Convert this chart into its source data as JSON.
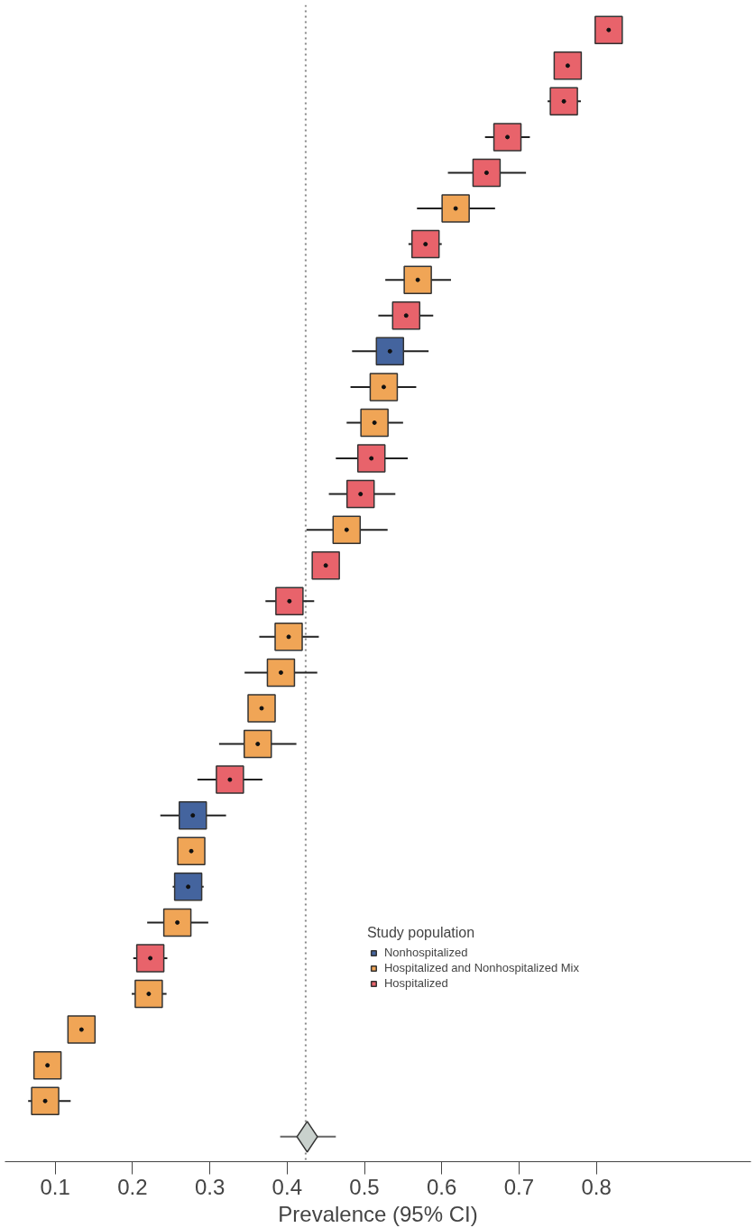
{
  "chart_data": {
    "type": "scatter",
    "orientation": "horizontal",
    "xlabel": "Prevalence (95% CI)",
    "legend_title": "Study population",
    "legend": "bottom right",
    "grid": false,
    "tick_labels": "x",
    "categories": [
      null,
      null,
      null,
      null,
      null,
      null,
      null,
      null,
      null,
      null,
      null,
      null,
      null,
      null,
      null,
      null,
      null,
      null,
      null,
      null,
      null,
      null,
      null,
      null,
      null,
      null,
      null,
      null,
      null,
      null,
      null,
      null
    ],
    "xlim": [
      0.035,
      1.0
    ],
    "xticks": [
      0.1,
      0.2,
      0.3,
      0.4,
      0.5,
      0.6,
      0.7,
      0.8
    ],
    "ref_lines": [
      {
        "axis": "x",
        "value": 0.424,
        "line_style": "dotted",
        "color": "#888888"
      }
    ],
    "series": [
      {
        "name": "Nonhospitalized",
        "color": "#44649e",
        "marker": "square",
        "values": [
          null,
          null,
          null,
          null,
          null,
          null,
          null,
          null,
          null,
          0.533,
          null,
          null,
          null,
          null,
          null,
          null,
          null,
          null,
          null,
          null,
          null,
          null,
          0.278,
          null,
          0.272,
          null,
          null,
          null,
          null,
          null,
          null,
          null
        ],
        "errors": [
          null,
          null,
          null,
          null,
          null,
          null,
          null,
          null,
          null,
          [
            0.484,
            0.583
          ],
          null,
          null,
          null,
          null,
          null,
          null,
          null,
          null,
          null,
          null,
          null,
          null,
          [
            0.236,
            0.321
          ],
          null,
          [
            0.252,
            0.292
          ],
          null,
          null,
          null,
          null,
          null,
          null,
          null
        ]
      },
      {
        "name": "Hospitalized and Nonhospitalized Mix",
        "color": "#f0a556",
        "marker": "square",
        "values": [
          null,
          null,
          null,
          null,
          null,
          0.618,
          null,
          0.569,
          null,
          null,
          0.525,
          0.513,
          null,
          null,
          0.477,
          null,
          null,
          0.402,
          0.392,
          0.367,
          0.362,
          null,
          null,
          0.276,
          null,
          0.258,
          null,
          0.221,
          0.134,
          0.09,
          0.087,
          null
        ],
        "errors": [
          null,
          null,
          null,
          null,
          null,
          [
            0.568,
            0.669
          ],
          null,
          [
            0.527,
            0.612
          ],
          null,
          null,
          [
            0.482,
            0.567
          ],
          [
            0.477,
            0.55
          ],
          null,
          null,
          [
            0.425,
            0.53
          ],
          null,
          null,
          [
            0.364,
            0.441
          ],
          [
            0.345,
            0.439
          ],
          null,
          [
            0.312,
            0.412
          ],
          null,
          null,
          null,
          null,
          [
            0.219,
            0.298
          ],
          null,
          [
            0.199,
            0.244
          ],
          null,
          null,
          [
            0.065,
            0.12
          ],
          null
        ]
      },
      {
        "name": "Hospitalized",
        "color": "#e8636b",
        "marker": "square",
        "values": [
          0.816,
          0.763,
          0.758,
          0.685,
          0.658,
          null,
          0.579,
          null,
          0.554,
          null,
          null,
          null,
          0.509,
          0.495,
          null,
          0.45,
          0.403,
          null,
          null,
          null,
          null,
          0.326,
          null,
          null,
          null,
          null,
          0.223,
          null,
          null,
          null,
          null,
          null
        ],
        "errors": [
          [
            0.8,
            0.83
          ],
          null,
          [
            0.737,
            0.78
          ],
          [
            0.656,
            0.714
          ],
          [
            0.608,
            0.709
          ],
          null,
          [
            0.557,
            0.6
          ],
          null,
          [
            0.518,
            0.589
          ],
          null,
          null,
          null,
          [
            0.463,
            0.556
          ],
          [
            0.454,
            0.54
          ],
          null,
          [
            0.435,
            0.466
          ],
          [
            0.372,
            0.435
          ],
          null,
          null,
          null,
          null,
          [
            0.284,
            0.368
          ],
          null,
          null,
          null,
          null,
          [
            0.201,
            0.245
          ],
          null,
          null,
          null,
          null,
          null
        ]
      },
      {
        "color": "#c9d1cd",
        "marker": "diamond",
        "values": [
          null,
          null,
          null,
          null,
          null,
          null,
          null,
          null,
          null,
          null,
          null,
          null,
          null,
          null,
          null,
          null,
          null,
          null,
          null,
          null,
          null,
          null,
          null,
          null,
          null,
          null,
          null,
          null,
          null,
          null,
          null,
          0.426
        ],
        "errors": [
          null,
          null,
          null,
          null,
          null,
          null,
          null,
          null,
          null,
          null,
          null,
          null,
          null,
          null,
          null,
          null,
          null,
          null,
          null,
          null,
          null,
          null,
          null,
          null,
          null,
          null,
          null,
          null,
          null,
          null,
          null,
          [
            0.391,
            0.463
          ]
        ]
      }
    ]
  }
}
